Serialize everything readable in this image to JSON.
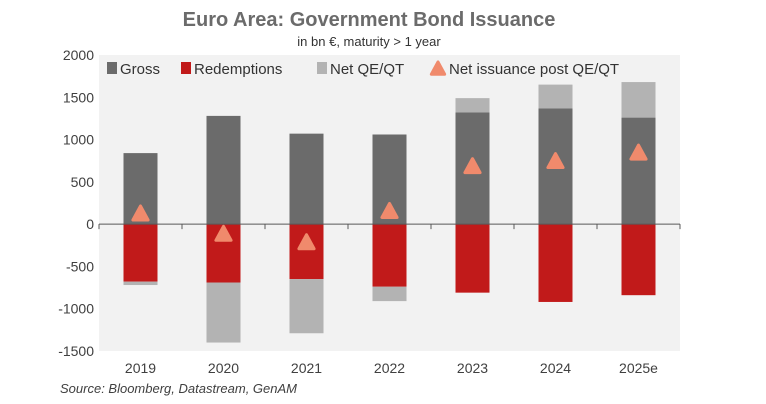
{
  "chart_data": {
    "type": "bar",
    "title": "Euro Area: Government Bond Issuance",
    "subtitle": "in bn €, maturity > 1 year",
    "source": "Source: Bloomberg, Datastream, GenAM",
    "categories": [
      "2019",
      "2020",
      "2021",
      "2022",
      "2023",
      "2024",
      "2025e"
    ],
    "ylim": [
      -1500,
      2000
    ],
    "yticks": [
      2000,
      1500,
      1000,
      500,
      0,
      -500,
      -1000,
      -1500
    ],
    "legend_position": "top",
    "series": [
      {
        "name": "Gross",
        "kind": "bar",
        "color": "#6b6b6b",
        "values": [
          840,
          1280,
          1070,
          1060,
          1320,
          1370,
          1260
        ]
      },
      {
        "name": "Redemptions",
        "kind": "bar",
        "color": "#c11a1a",
        "values": [
          -680,
          -690,
          -650,
          -740,
          -810,
          -920,
          -840
        ]
      },
      {
        "name": "Net QE/QT",
        "kind": "bar",
        "color": "#b3b3b3",
        "values": [
          -40,
          -710,
          -640,
          -170,
          170,
          280,
          420
        ]
      },
      {
        "name": "Net issuance post QE/QT",
        "kind": "marker",
        "color": "#f08a6c",
        "values": [
          120,
          -120,
          -220,
          150,
          680,
          740,
          840
        ]
      }
    ]
  }
}
